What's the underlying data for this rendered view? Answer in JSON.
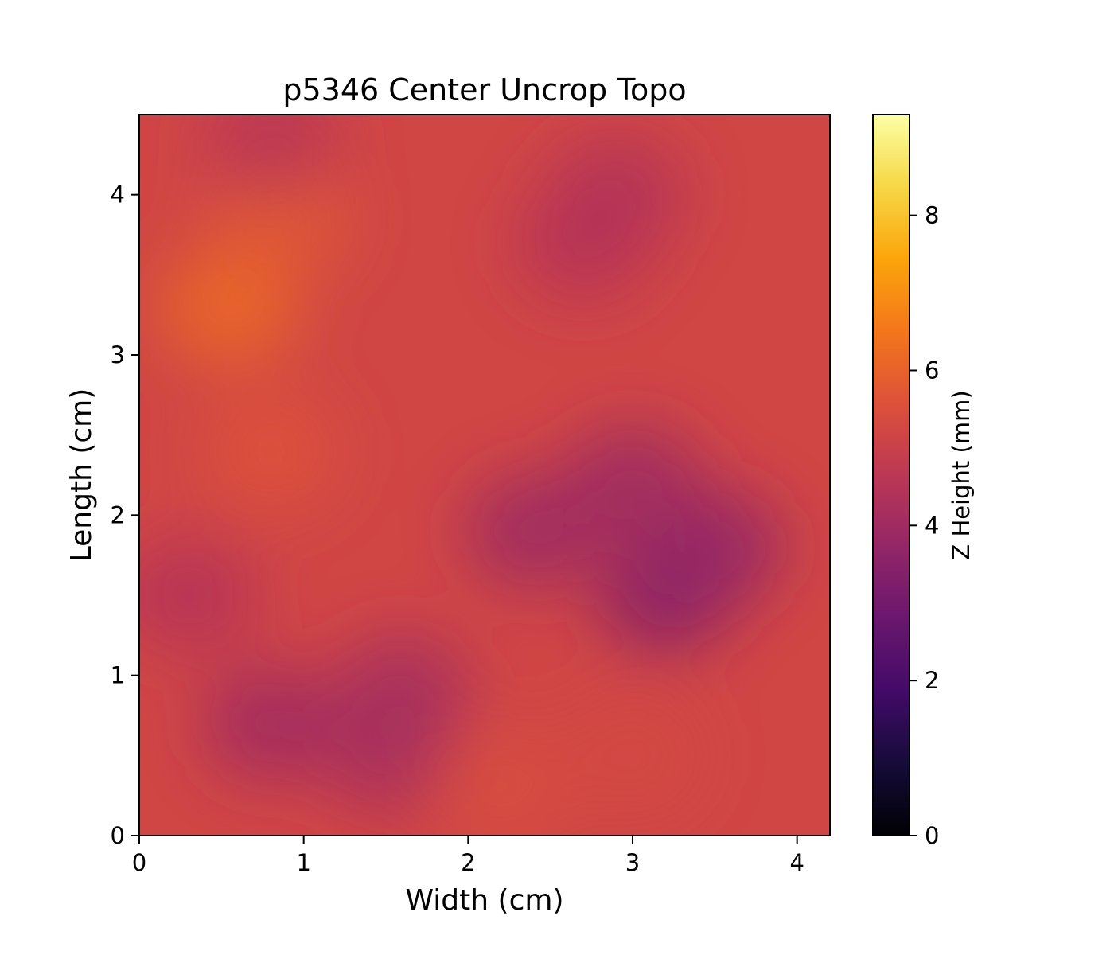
{
  "chart_data": {
    "type": "heatmap",
    "title": "p5346 Center Uncrop Topo",
    "xlabel": "Width (cm)",
    "ylabel": "Length (cm)",
    "xlim": [
      0,
      4.2
    ],
    "ylim": [
      0,
      4.5
    ],
    "xticks": [
      0,
      1,
      2,
      3,
      4
    ],
    "yticks": [
      0,
      1,
      2,
      3,
      4
    ],
    "colormap": "inferno",
    "colorbar": {
      "label": "Z Height (mm)",
      "range": [
        0,
        9.3
      ],
      "ticks": [
        0,
        2,
        4,
        6,
        8
      ]
    },
    "features": [
      {
        "x": 0.55,
        "y": 3.3,
        "z": 6.2
      },
      {
        "x": 0.85,
        "y": 3.85,
        "z": 5.8
      },
      {
        "x": 0.8,
        "y": 2.4,
        "z": 5.6
      },
      {
        "x": 3.2,
        "y": 1.5,
        "z": 3.4
      },
      {
        "x": 3.5,
        "y": 1.8,
        "z": 3.7
      },
      {
        "x": 2.4,
        "y": 1.9,
        "z": 3.9
      },
      {
        "x": 3.0,
        "y": 2.2,
        "z": 3.9
      },
      {
        "x": 0.8,
        "y": 0.7,
        "z": 4.0
      },
      {
        "x": 1.5,
        "y": 0.5,
        "z": 4.2
      },
      {
        "x": 1.6,
        "y": 0.9,
        "z": 4.1
      },
      {
        "x": 2.9,
        "y": 4.0,
        "z": 4.4
      },
      {
        "x": 2.7,
        "y": 3.7,
        "z": 4.5
      },
      {
        "x": 0.3,
        "y": 1.5,
        "z": 4.5
      },
      {
        "x": 0.8,
        "y": 4.35,
        "z": 4.6
      },
      {
        "x": 3.0,
        "y": 0.5,
        "z": 5.3
      },
      {
        "x": 2.2,
        "y": 0.3,
        "z": 5.4
      }
    ],
    "base_z": 5.2
  }
}
